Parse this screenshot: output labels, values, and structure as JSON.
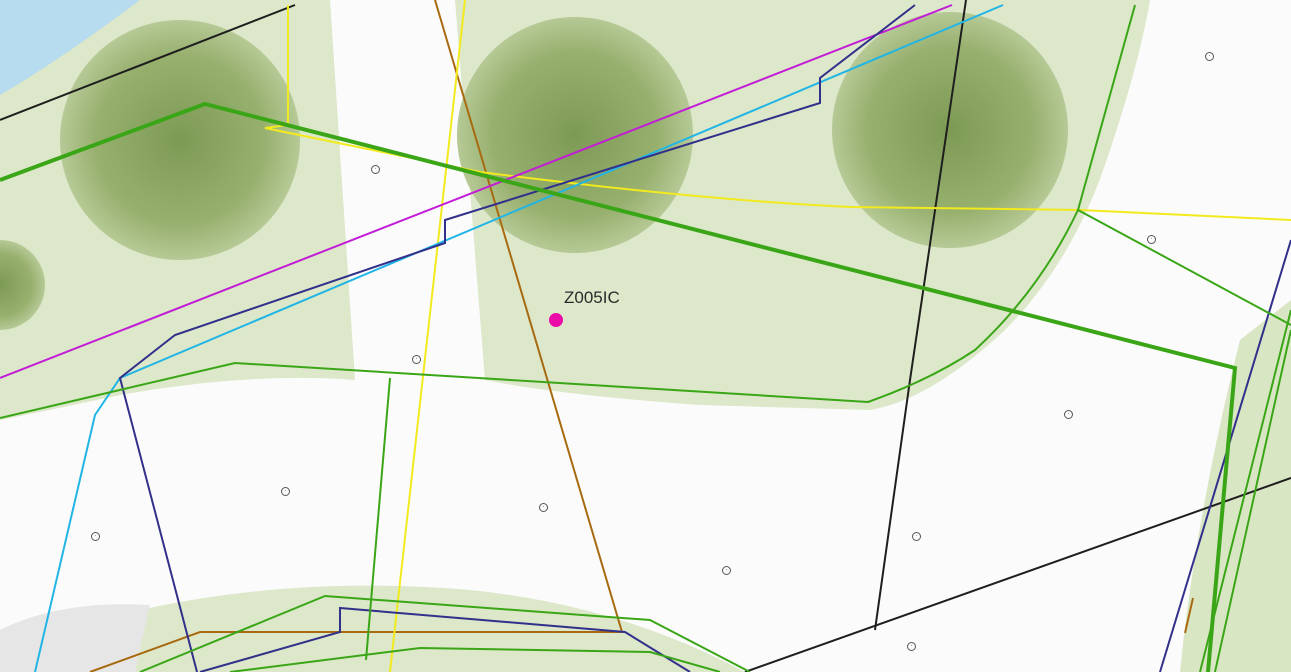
{
  "map": {
    "feature": {
      "label": "Z005IC",
      "marker_color": "#ea0aa8"
    },
    "layer_colors": {
      "park": "#dce8c9",
      "tree_canopy": "#93b06a",
      "road": "#ffffff",
      "water": "#b7dbef",
      "line_green": "#3aa617",
      "line_magenta": "#c21cd6",
      "line_cyan": "#21b5e6",
      "line_navy": "#31308a",
      "line_yellow": "#f2ea1e",
      "line_brown": "#a86a10",
      "line_black": "#1e1e1e"
    }
  }
}
